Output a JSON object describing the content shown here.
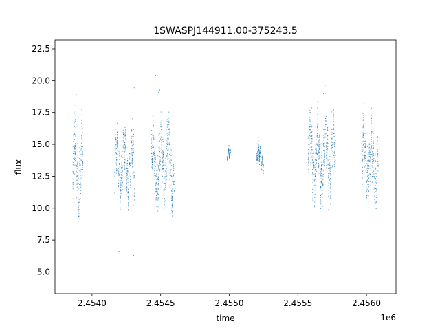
{
  "chart_data": {
    "type": "scatter",
    "title": "1SWASPJ144911.00-375243.5",
    "xlabel": "time",
    "ylabel": "flux",
    "x_offset_label": "1e6",
    "xlim": [
      2453730,
      2456215
    ],
    "ylim": [
      3.3,
      23.2
    ],
    "x_ticks": [
      2.454,
      2.4545,
      2.455,
      2.4555,
      2.456
    ],
    "x_tick_labels": [
      "2.4540",
      "2.4545",
      "2.4550",
      "2.4555",
      "2.4560"
    ],
    "y_ticks": [
      5.0,
      7.5,
      10.0,
      12.5,
      15.0,
      17.5,
      20.0,
      22.5
    ],
    "y_tick_labels": [
      "5.0",
      "7.5",
      "10.0",
      "12.5",
      "15.0",
      "17.5",
      "20.0",
      "22.5"
    ],
    "grid": false,
    "point_color": "#1f77b4",
    "clusters": [
      {
        "x_start": 2453860,
        "x_end": 2453935,
        "y_mid": 13.5,
        "y_amp": 5.0
      },
      {
        "x_start": 2454165,
        "x_end": 2454310,
        "y_mid": 13.3,
        "y_amp": 4.0
      },
      {
        "x_start": 2454430,
        "x_end": 2454600,
        "y_mid": 13.5,
        "y_amp": 4.5
      },
      {
        "x_start": 2454985,
        "x_end": 2455010,
        "y_mid": 14.0,
        "y_amp": 1.0
      },
      {
        "x_start": 2455200,
        "x_end": 2455250,
        "y_mid": 14.0,
        "y_amp": 1.5
      },
      {
        "x_start": 2455575,
        "x_end": 2455775,
        "y_mid": 14.0,
        "y_amp": 4.5
      },
      {
        "x_start": 2455965,
        "x_end": 2456085,
        "y_mid": 13.5,
        "y_amp": 4.5
      }
    ]
  }
}
